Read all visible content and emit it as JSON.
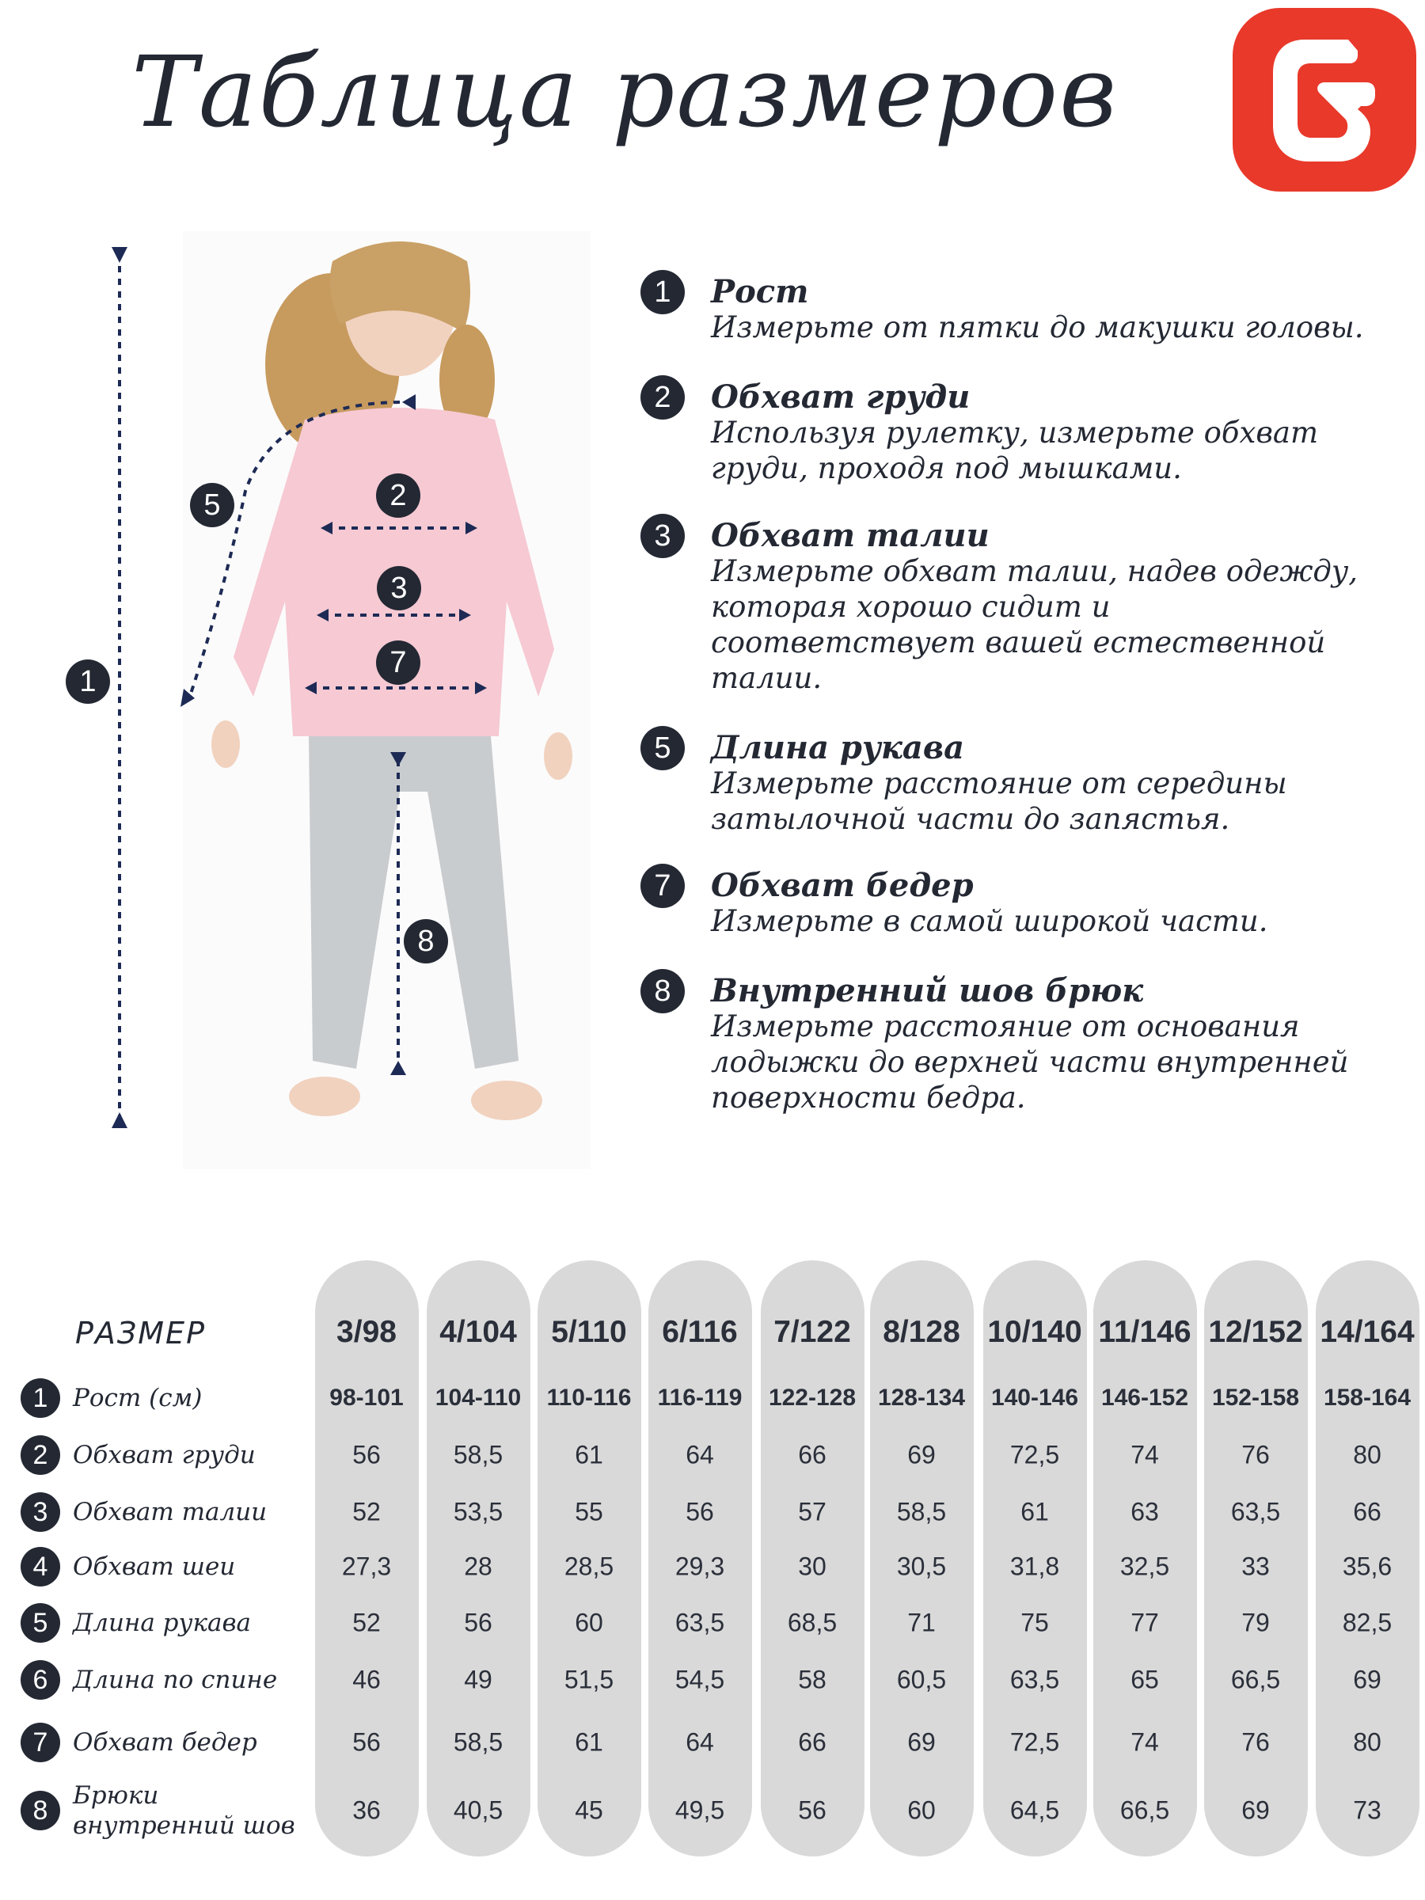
{
  "title": "Таблица размеров",
  "brand_color": "#E8392A",
  "logo": {
    "icon": "brand-g-logo"
  },
  "illustration": {
    "markers": [
      "1",
      "2",
      "3",
      "5",
      "7",
      "8"
    ],
    "sweater_color": "#F6C9D3",
    "pants_color": "#C9CCCF"
  },
  "instructions": [
    {
      "num": "1",
      "title": "Рост",
      "lines": [
        "Измерьте от пятки до макушки головы."
      ]
    },
    {
      "num": "2",
      "title": "Обхват груди",
      "lines": [
        "Используя рулетку, измерьте обхват",
        "груди, проходя под мышками."
      ]
    },
    {
      "num": "3",
      "title": "Обхват талии",
      "lines": [
        "Измерьте обхват талии, надев одежду,",
        "которая хорошо сидит и",
        "соответствует  вашей естественной",
        "талии."
      ]
    },
    {
      "num": "5",
      "title": "Длина рукава",
      "lines": [
        "Измерьте расстояние от середины",
        "затылочной части до запястья."
      ]
    },
    {
      "num": "7",
      "title": "Обхват бедер",
      "lines": [
        "Измерьте в самой широкой части."
      ]
    },
    {
      "num": "8",
      "title": "Внутренний шов брюк",
      "lines": [
        "Измерьте расстояние от основания",
        "лодыжки до верхней части внутренней",
        "поверхности бедра."
      ]
    }
  ],
  "table": {
    "size_label": "РАЗМЕР",
    "sizes": [
      "3/98",
      "4/104",
      "5/110",
      "6/116",
      "7/122",
      "8/128",
      "10/140",
      "11/146",
      "12/152",
      "14/164"
    ],
    "rows": [
      {
        "num": "1",
        "label": [
          "Рост (см)"
        ],
        "values": [
          "98-101",
          "104-110",
          "110-116",
          "116-119",
          "122-128",
          "128-134",
          "140-146",
          "146-152",
          "152-158",
          "158-164"
        ]
      },
      {
        "num": "2",
        "label": [
          "Обхват груди"
        ],
        "values": [
          "56",
          "58,5",
          "61",
          "64",
          "66",
          "69",
          "72,5",
          "74",
          "76",
          "80"
        ]
      },
      {
        "num": "3",
        "label": [
          "Обхват талии"
        ],
        "values": [
          "52",
          "53,5",
          "55",
          "56",
          "57",
          "58,5",
          "61",
          "63",
          "63,5",
          "66"
        ]
      },
      {
        "num": "4",
        "label": [
          "Обхват шеи"
        ],
        "values": [
          "27,3",
          "28",
          "28,5",
          "29,3",
          "30",
          "30,5",
          "31,8",
          "32,5",
          "33",
          "35,6"
        ]
      },
      {
        "num": "5",
        "label": [
          "Длина рукава"
        ],
        "values": [
          "52",
          "56",
          "60",
          "63,5",
          "68,5",
          "71",
          "75",
          "77",
          "79",
          "82,5"
        ]
      },
      {
        "num": "6",
        "label": [
          "Длина по спине"
        ],
        "values": [
          "46",
          "49",
          "51,5",
          "54,5",
          "58",
          "60,5",
          "63,5",
          "65",
          "66,5",
          "69"
        ]
      },
      {
        "num": "7",
        "label": [
          "Обхват бедер"
        ],
        "values": [
          "56",
          "58,5",
          "61",
          "64",
          "66",
          "69",
          "72,5",
          "74",
          "76",
          "80"
        ]
      },
      {
        "num": "8",
        "label": [
          "Брюки",
          "внутренний шов"
        ],
        "values": [
          "36",
          "40,5",
          "45",
          "49,5",
          "56",
          "60",
          "64,5",
          "66,5",
          "69",
          "73"
        ]
      }
    ]
  }
}
